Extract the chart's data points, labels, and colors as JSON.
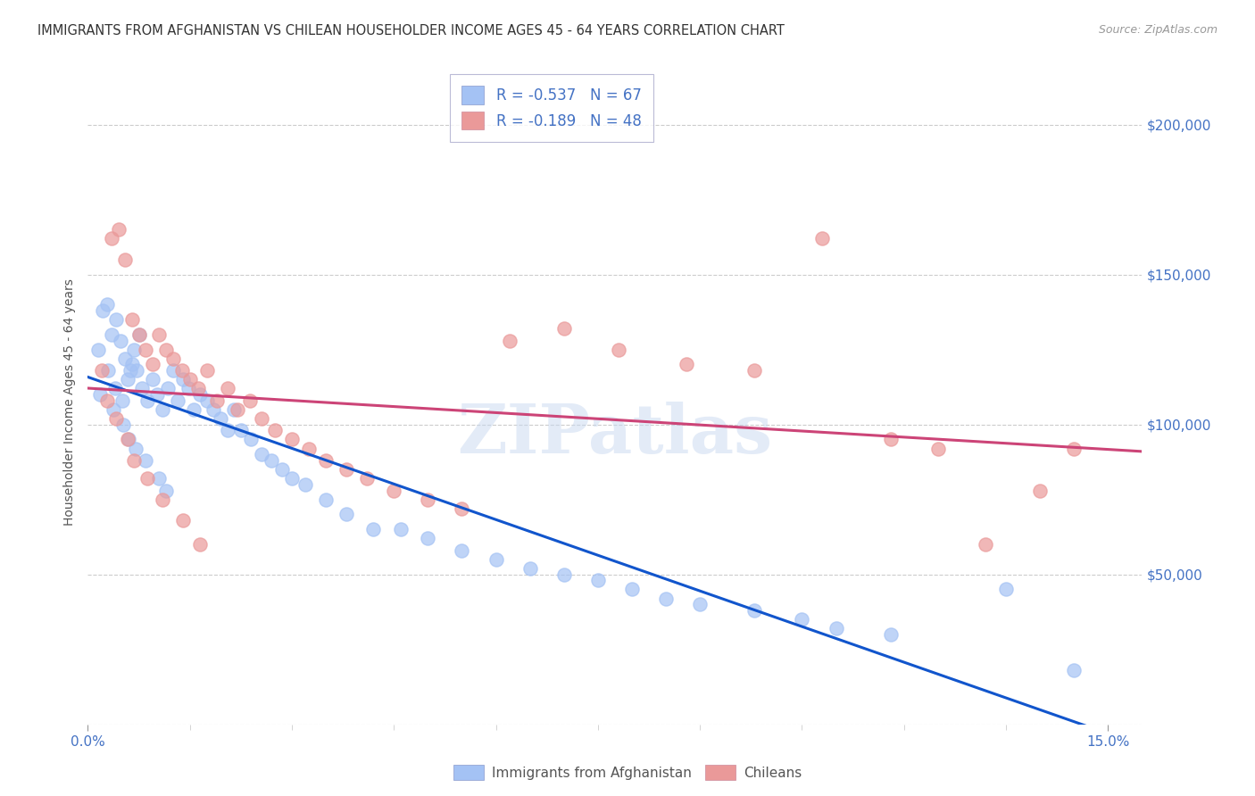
{
  "title": "IMMIGRANTS FROM AFGHANISTAN VS CHILEAN HOUSEHOLDER INCOME AGES 45 - 64 YEARS CORRELATION CHART",
  "source": "Source: ZipAtlas.com",
  "ylabel": "Householder Income Ages 45 - 64 years",
  "ylabel_ticks": [
    0,
    50000,
    100000,
    150000,
    200000
  ],
  "ylabel_labels": [
    "",
    "$50,000",
    "$100,000",
    "$150,000",
    "$200,000"
  ],
  "ylim": [
    0,
    215000
  ],
  "xlim": [
    0.0,
    15.5
  ],
  "xticks_show": [
    0.0,
    15.0
  ],
  "xtick_labels": [
    "0.0%",
    "15.0%"
  ],
  "xticks_minor": [
    1.5,
    3.0,
    4.5,
    6.0,
    7.5,
    9.0,
    10.5,
    12.0,
    13.5
  ],
  "legend_label_blue": "Immigrants from Afghanistan",
  "legend_label_pink": "Chileans",
  "blue_color": "#a4c2f4",
  "pink_color": "#ea9999",
  "line_blue": "#1155cc",
  "line_pink": "#cc4477",
  "axis_label_color": "#4472c4",
  "watermark": "ZIPatlas",
  "blue_scatter_x": [
    0.15,
    0.22,
    0.28,
    0.35,
    0.42,
    0.48,
    0.55,
    0.62,
    0.68,
    0.75,
    0.18,
    0.3,
    0.4,
    0.5,
    0.58,
    0.65,
    0.72,
    0.8,
    0.88,
    0.95,
    1.02,
    1.1,
    1.18,
    1.25,
    1.32,
    1.4,
    1.48,
    1.55,
    1.65,
    1.75,
    1.85,
    1.95,
    2.05,
    2.15,
    2.25,
    2.4,
    2.55,
    2.7,
    2.85,
    3.0,
    3.2,
    3.5,
    3.8,
    4.2,
    4.6,
    5.0,
    5.5,
    6.0,
    6.5,
    7.0,
    7.5,
    8.0,
    8.5,
    9.0,
    9.8,
    10.5,
    11.0,
    11.8,
    13.5,
    14.5,
    0.38,
    0.52,
    0.6,
    0.7,
    0.85,
    1.05,
    1.15
  ],
  "blue_scatter_y": [
    125000,
    138000,
    140000,
    130000,
    135000,
    128000,
    122000,
    118000,
    125000,
    130000,
    110000,
    118000,
    112000,
    108000,
    115000,
    120000,
    118000,
    112000,
    108000,
    115000,
    110000,
    105000,
    112000,
    118000,
    108000,
    115000,
    112000,
    105000,
    110000,
    108000,
    105000,
    102000,
    98000,
    105000,
    98000,
    95000,
    90000,
    88000,
    85000,
    82000,
    80000,
    75000,
    70000,
    65000,
    65000,
    62000,
    58000,
    55000,
    52000,
    50000,
    48000,
    45000,
    42000,
    40000,
    38000,
    35000,
    32000,
    30000,
    45000,
    18000,
    105000,
    100000,
    95000,
    92000,
    88000,
    82000,
    78000
  ],
  "pink_scatter_x": [
    0.2,
    0.35,
    0.45,
    0.55,
    0.65,
    0.75,
    0.85,
    0.95,
    1.05,
    1.15,
    1.25,
    1.38,
    1.5,
    1.62,
    1.75,
    1.9,
    2.05,
    2.2,
    2.38,
    2.55,
    2.75,
    3.0,
    3.25,
    3.5,
    3.8,
    4.1,
    4.5,
    5.0,
    5.5,
    6.2,
    7.0,
    7.8,
    8.8,
    9.8,
    10.8,
    11.8,
    12.5,
    13.2,
    14.0,
    14.5,
    0.28,
    0.42,
    0.58,
    0.68,
    0.88,
    1.1,
    1.4,
    1.65
  ],
  "pink_scatter_y": [
    118000,
    162000,
    165000,
    155000,
    135000,
    130000,
    125000,
    120000,
    130000,
    125000,
    122000,
    118000,
    115000,
    112000,
    118000,
    108000,
    112000,
    105000,
    108000,
    102000,
    98000,
    95000,
    92000,
    88000,
    85000,
    82000,
    78000,
    75000,
    72000,
    128000,
    132000,
    125000,
    120000,
    118000,
    162000,
    95000,
    92000,
    60000,
    78000,
    92000,
    108000,
    102000,
    95000,
    88000,
    82000,
    75000,
    68000,
    60000
  ]
}
